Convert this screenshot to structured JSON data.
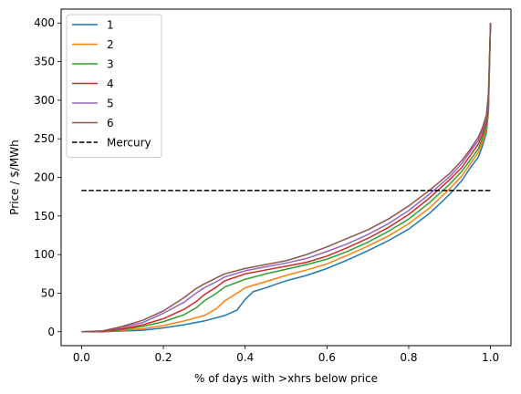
{
  "chart_data": {
    "type": "line",
    "title": "",
    "xlabel": "% of days with >xhrs below price",
    "ylabel": "Price / $/MWh",
    "xlim": [
      -0.05,
      1.05
    ],
    "ylim": [
      -18,
      418
    ],
    "grid": false,
    "legend_position": "top-left",
    "x_ticks": [
      0.0,
      0.2,
      0.4,
      0.6,
      0.8,
      1.0
    ],
    "x_tick_labels": [
      "0.0",
      "0.2",
      "0.4",
      "0.6",
      "0.8",
      "1.0"
    ],
    "y_ticks": [
      0,
      50,
      100,
      150,
      200,
      250,
      300,
      350,
      400
    ],
    "y_tick_labels": [
      "0",
      "50",
      "100",
      "150",
      "200",
      "250",
      "300",
      "350",
      "400"
    ],
    "series": [
      {
        "name": "1",
        "color": "#1f77b4",
        "dash": "solid",
        "x": [
          0,
          0.05,
          0.1,
          0.15,
          0.2,
          0.25,
          0.3,
          0.35,
          0.38,
          0.4,
          0.42,
          0.45,
          0.5,
          0.55,
          0.6,
          0.65,
          0.7,
          0.75,
          0.8,
          0.85,
          0.9,
          0.93,
          0.95,
          0.97,
          0.98,
          0.99,
          0.995,
          1.0
        ],
        "values": [
          0,
          0,
          1,
          2,
          5,
          9,
          14,
          21,
          28,
          42,
          52,
          57,
          66,
          73,
          82,
          93,
          105,
          118,
          133,
          153,
          178,
          196,
          212,
          226,
          240,
          258,
          285,
          400
        ]
      },
      {
        "name": "2",
        "color": "#ff7f0e",
        "dash": "solid",
        "x": [
          0,
          0.05,
          0.1,
          0.15,
          0.2,
          0.25,
          0.3,
          0.33,
          0.35,
          0.38,
          0.4,
          0.45,
          0.5,
          0.55,
          0.6,
          0.65,
          0.7,
          0.75,
          0.8,
          0.85,
          0.9,
          0.93,
          0.95,
          0.97,
          0.98,
          0.99,
          0.995,
          1.0
        ],
        "values": [
          0,
          0,
          2,
          4,
          8,
          14,
          21,
          30,
          40,
          50,
          57,
          65,
          73,
          80,
          88,
          99,
          111,
          124,
          140,
          160,
          185,
          202,
          217,
          232,
          245,
          262,
          290,
          400
        ]
      },
      {
        "name": "3",
        "color": "#2ca02c",
        "dash": "solid",
        "x": [
          0,
          0.05,
          0.1,
          0.15,
          0.2,
          0.25,
          0.28,
          0.3,
          0.33,
          0.35,
          0.4,
          0.45,
          0.5,
          0.55,
          0.6,
          0.65,
          0.7,
          0.75,
          0.8,
          0.85,
          0.9,
          0.93,
          0.95,
          0.97,
          0.98,
          0.99,
          0.995,
          1.0
        ],
        "values": [
          0,
          0,
          3,
          7,
          13,
          22,
          31,
          40,
          50,
          58,
          68,
          75,
          81,
          87,
          94,
          104,
          116,
          130,
          146,
          167,
          191,
          208,
          222,
          237,
          250,
          266,
          295,
          400
        ]
      },
      {
        "name": "4",
        "color": "#d62728",
        "dash": "solid",
        "x": [
          0,
          0.05,
          0.1,
          0.15,
          0.2,
          0.25,
          0.28,
          0.3,
          0.33,
          0.35,
          0.4,
          0.45,
          0.5,
          0.55,
          0.6,
          0.65,
          0.7,
          0.75,
          0.8,
          0.85,
          0.9,
          0.93,
          0.95,
          0.97,
          0.98,
          0.99,
          0.995,
          1.0
        ],
        "values": [
          0,
          0,
          4,
          9,
          17,
          29,
          39,
          48,
          58,
          66,
          75,
          80,
          85,
          90,
          98,
          109,
          121,
          135,
          152,
          173,
          197,
          213,
          228,
          243,
          255,
          272,
          300,
          400
        ]
      },
      {
        "name": "5",
        "color": "#9467bd",
        "dash": "solid",
        "x": [
          0,
          0.05,
          0.1,
          0.15,
          0.2,
          0.25,
          0.28,
          0.3,
          0.33,
          0.35,
          0.4,
          0.45,
          0.5,
          0.55,
          0.6,
          0.65,
          0.7,
          0.75,
          0.8,
          0.85,
          0.9,
          0.93,
          0.95,
          0.97,
          0.98,
          0.99,
          0.995,
          1.0
        ],
        "values": [
          0,
          1,
          6,
          12,
          24,
          38,
          50,
          57,
          65,
          71,
          79,
          84,
          89,
          95,
          104,
          114,
          126,
          140,
          157,
          178,
          201,
          218,
          233,
          248,
          260,
          277,
          305,
          400
        ]
      },
      {
        "name": "6",
        "color": "#8c564b",
        "dash": "solid",
        "x": [
          0,
          0.05,
          0.1,
          0.15,
          0.2,
          0.25,
          0.28,
          0.3,
          0.33,
          0.35,
          0.4,
          0.45,
          0.5,
          0.55,
          0.6,
          0.65,
          0.7,
          0.75,
          0.8,
          0.85,
          0.9,
          0.93,
          0.95,
          0.97,
          0.98,
          0.99,
          0.995,
          1.0
        ],
        "values": [
          0,
          1,
          7,
          15,
          27,
          44,
          56,
          62,
          70,
          75,
          82,
          87,
          92,
          100,
          110,
          121,
          132,
          146,
          163,
          183,
          205,
          222,
          236,
          252,
          264,
          281,
          310,
          400
        ]
      },
      {
        "name": "Mercury",
        "color": "#000000",
        "dash": "dashed",
        "x": [
          0,
          1.0
        ],
        "values": [
          183,
          183
        ]
      }
    ]
  }
}
